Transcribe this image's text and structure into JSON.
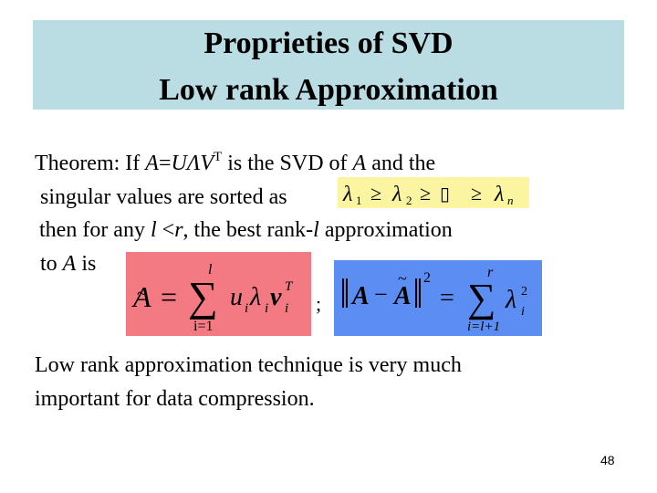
{
  "title": {
    "line1": "Proprieties of SVD",
    "line2": "Low rank Approximation"
  },
  "theorem": {
    "prefix": "Theorem: If ",
    "a1": "A",
    "eq_sign": "=",
    "u": "U",
    "lambda": "Λ",
    "v": "V",
    "t_sup": "T",
    "mid1": " is the SVD of ",
    "a2": "A",
    "mid2": " and the",
    "line2": "singular values are sorted as",
    "line3_a": "then for any ",
    "l_var": "l",
    "line3_b": " <",
    "r_var": "r",
    "line3_c": ", the best rank-",
    "l_var2": "l",
    "line3_d": " approximation",
    "line4_a": "to ",
    "a3": "A",
    "line4_b": " is"
  },
  "sorted_formula": {
    "l1": "λ",
    "s1": "1",
    "geq1": "≥",
    "l2": "λ",
    "s2": "2",
    "geq2": "≥",
    "box": "▯",
    "geq3": "≥",
    "ln": "λ",
    "sn": "n"
  },
  "approx_formula": {
    "a": "A",
    "tilde": "~",
    "eq": "=",
    "sum_top": "l",
    "sum_bottom": "i=1",
    "u": "u",
    "ui": "i",
    "lam": "λ",
    "li": "i",
    "v": "v",
    "vi": "i",
    "vt": "T"
  },
  "separator": ";",
  "error_formula": {
    "a": "A",
    "minus": "−",
    "a_tilde": "A",
    "tilde": "~",
    "exp": "2",
    "eq": "=",
    "sum_top": "r",
    "sum_bottom": "i=l+1",
    "lam": "λ",
    "li": "i",
    "lexp": "2"
  },
  "conclusion": {
    "line1": "Low rank approximation technique is very much",
    "line2": "important for data compression."
  },
  "page_number": "48",
  "colors": {
    "title_bg": "#b9dde3",
    "sorted_bg": "#fbf5a1",
    "approx_bg": "#f37a83",
    "error_bg": "#5b8df2"
  }
}
